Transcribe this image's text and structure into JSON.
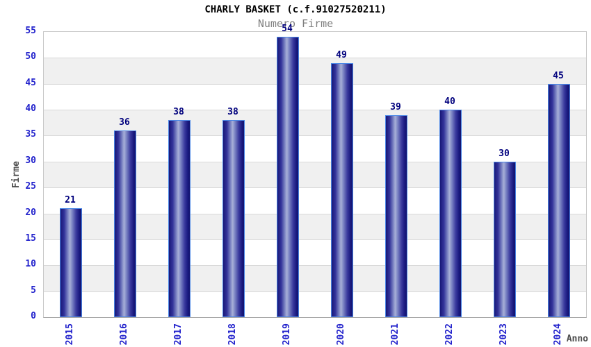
{
  "chart_data": {
    "type": "bar",
    "title": "CHARLY BASKET (c.f.91027520211)",
    "subtitle": "Numero Firme",
    "xlabel": "Anno",
    "ylabel": "Firme",
    "categories": [
      "2015",
      "2016",
      "2017",
      "2018",
      "2019",
      "2020",
      "2021",
      "2022",
      "2023",
      "2024"
    ],
    "values": [
      21,
      36,
      38,
      38,
      54,
      49,
      39,
      40,
      30,
      45
    ],
    "ylim": [
      0,
      55
    ],
    "ytick_step": 5,
    "grid": true,
    "legend": "none",
    "band_colors": [
      "#ffffff",
      "#f0f0f0"
    ],
    "colors": {
      "bar_dark": "#16167a",
      "bar_highlight": "#a8b0d8",
      "bar_border": "#4b87e6",
      "tick_label": "#2222cc",
      "value_label": "#00007d",
      "axis_label": "#4d4d4d",
      "title": "#000000",
      "subtitle": "#7f7f7f",
      "gridline": "#d8d8d8",
      "band_gray": "#f0f0f0",
      "background": "#ffffff"
    }
  }
}
